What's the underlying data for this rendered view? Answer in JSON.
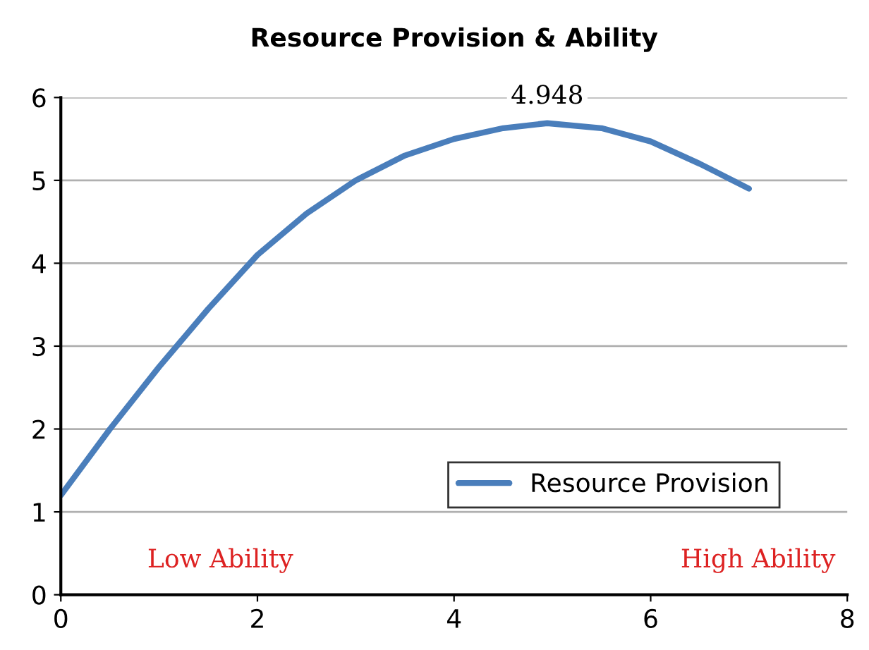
{
  "chart_data": {
    "type": "line",
    "title": "Resource Provision & Ability",
    "x": [
      0,
      0.5,
      1,
      1.5,
      2,
      2.5,
      3,
      3.5,
      4,
      4.5,
      4.948,
      5.5,
      6,
      6.5,
      7
    ],
    "series": [
      {
        "name": "Resource Provision",
        "color": "#4a7ebb",
        "values": [
          1.2,
          2.0,
          2.75,
          3.45,
          4.1,
          4.6,
          5.0,
          5.3,
          5.5,
          5.63,
          5.69,
          5.63,
          5.47,
          5.2,
          4.9
        ]
      }
    ],
    "xlim": [
      0,
      8
    ],
    "xticks": [
      0,
      2,
      4,
      6,
      8
    ],
    "ylim": [
      0,
      6
    ],
    "yticks": [
      0,
      1,
      2,
      3,
      4,
      5,
      6
    ],
    "grid": "y",
    "legend": "bottom right",
    "marker": "none",
    "line_style": "solid",
    "annotations": [
      {
        "text": "4.948",
        "x": 4.948,
        "y": 5.69
      },
      "Low Ability",
      "High Ability"
    ]
  }
}
